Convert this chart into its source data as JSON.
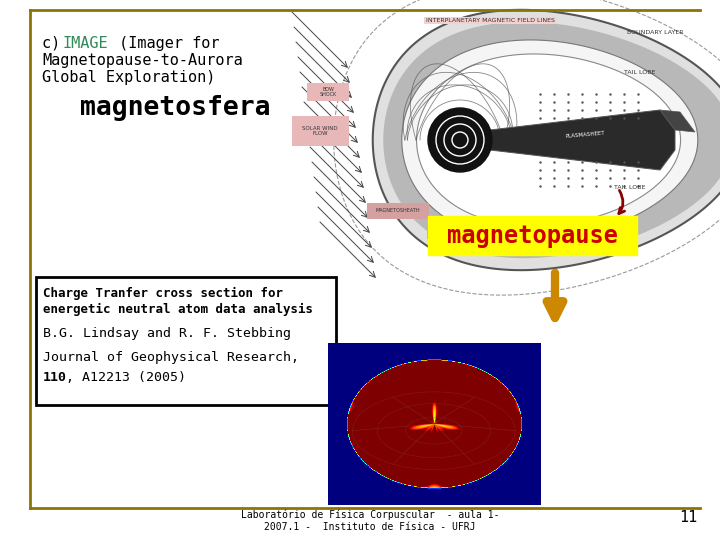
{
  "bg_color": "#ffffff",
  "border_color_gold": "#8B7500",
  "slide_title_c": "c) ",
  "slide_title_image": "IMAGE",
  "slide_title_image_color": "#2e8b57",
  "slide_title_rest1": "(Imager for",
  "slide_title_rest2": "Magnetopause-to-Aurora",
  "slide_title_rest3": "Global Exploration)",
  "magnetosfera_text": "magnetosfera",
  "magnetopause_text": "magnetopause",
  "magnetopause_bg": "#ffff00",
  "magnetopause_color": "#cc0000",
  "box_title_line1": "Charge Tranfer cross section for",
  "box_title_line2": "energetic neutral atom data analysis",
  "box_author": "B.G. Lindsay and R. F. Stebbing",
  "box_journal_line1": "Journal of Geophysical Research,",
  "box_journal_bold": "110",
  "box_journal_rest": ", A12213 (2005)",
  "footer_line1": "Laboratório de Física Corpuscular  - aula 1-",
  "footer_line2": "2007.1 -  Instituto de Física - UFRJ",
  "page_number": "11",
  "text_color": "#000000",
  "font_family": "monospace",
  "diagram_bg": "#f0f0f0",
  "diagram_outer_color": "#888888",
  "diagram_dark": "#222222",
  "diagram_med": "#666666",
  "diagram_light": "#cccccc",
  "diagram_pink": "#d4a0a0",
  "arrow_gold": "#cc8800"
}
